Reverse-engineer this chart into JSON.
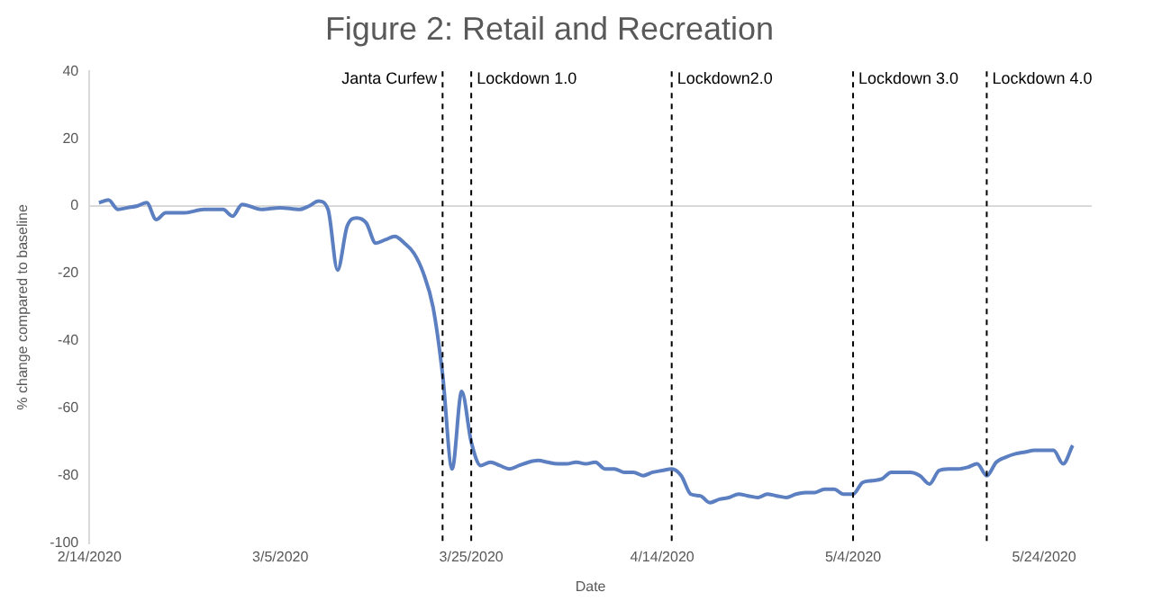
{
  "chart_data": {
    "type": "line",
    "title": "Figure 2: Retail and Recreation",
    "xlabel": "Date",
    "ylabel": "% change compared to baseline",
    "x": [
      "2020-02-15",
      "2020-02-16",
      "2020-02-17",
      "2020-02-18",
      "2020-02-19",
      "2020-02-20",
      "2020-02-21",
      "2020-02-22",
      "2020-02-24",
      "2020-02-26",
      "2020-02-28",
      "2020-02-29",
      "2020-03-01",
      "2020-03-03",
      "2020-03-05",
      "2020-03-07",
      "2020-03-08",
      "2020-03-09",
      "2020-03-10",
      "2020-03-11",
      "2020-03-12",
      "2020-03-13",
      "2020-03-14",
      "2020-03-15",
      "2020-03-16",
      "2020-03-17",
      "2020-03-18",
      "2020-03-19",
      "2020-03-20",
      "2020-03-21",
      "2020-03-22",
      "2020-03-23",
      "2020-03-24",
      "2020-03-25",
      "2020-03-26",
      "2020-03-27",
      "2020-03-28",
      "2020-03-29",
      "2020-03-30",
      "2020-03-31",
      "2020-04-01",
      "2020-04-02",
      "2020-04-03",
      "2020-04-04",
      "2020-04-05",
      "2020-04-06",
      "2020-04-07",
      "2020-04-08",
      "2020-04-09",
      "2020-04-10",
      "2020-04-11",
      "2020-04-12",
      "2020-04-13",
      "2020-04-14",
      "2020-04-15",
      "2020-04-16",
      "2020-04-17",
      "2020-04-18",
      "2020-04-19",
      "2020-04-20",
      "2020-04-21",
      "2020-04-22",
      "2020-04-23",
      "2020-04-24",
      "2020-04-25",
      "2020-04-26",
      "2020-04-27",
      "2020-04-28",
      "2020-04-29",
      "2020-04-30",
      "2020-05-01",
      "2020-05-02",
      "2020-05-03",
      "2020-05-04",
      "2020-05-05",
      "2020-05-06",
      "2020-05-07",
      "2020-05-08",
      "2020-05-09",
      "2020-05-10",
      "2020-05-11",
      "2020-05-12",
      "2020-05-13",
      "2020-05-14",
      "2020-05-15",
      "2020-05-16",
      "2020-05-17",
      "2020-05-18",
      "2020-05-19",
      "2020-05-20",
      "2020-05-21",
      "2020-05-22",
      "2020-05-23",
      "2020-05-24",
      "2020-05-25",
      "2020-05-26",
      "2020-05-27"
    ],
    "series": [
      {
        "color": "#5b7fc0",
        "values": [
          1,
          1.8,
          -1,
          -0.5,
          0,
          1,
          -4,
          -2,
          -2,
          -1,
          -1,
          -3,
          0.5,
          -1,
          -0.5,
          -1,
          0,
          1.5,
          -1,
          -19,
          -6,
          -3.5,
          -5,
          -11,
          -10,
          -9,
          -11,
          -14,
          -20,
          -30,
          -50,
          -78,
          -55,
          -70,
          -77,
          -76,
          -77,
          -78,
          -77,
          -76,
          -75.5,
          -76,
          -76.5,
          -76.5,
          -76,
          -76.5,
          -76,
          -78,
          -78,
          -79,
          -79,
          -80,
          -79,
          -78.5,
          -78,
          -80,
          -85.5,
          -86,
          -88,
          -87,
          -86.5,
          -85.5,
          -86,
          -86.5,
          -85.5,
          -86,
          -86.5,
          -85.5,
          -85,
          -85,
          -84,
          -84,
          -85.5,
          -85.5,
          -82,
          -81.5,
          -81,
          -79,
          -79,
          -79,
          -80,
          -82.5,
          -78.5,
          -78,
          -78,
          -77.5,
          -76.5,
          -80,
          -76,
          -74.5,
          -73.5,
          -73,
          -72.5,
          -72.5,
          -72.5,
          -76.5,
          -71
        ]
      }
    ],
    "xlim": [
      "2020-02-14",
      "2020-05-29"
    ],
    "xticks": [
      {
        "value": "2020-02-14",
        "label": "2/14/2020"
      },
      {
        "value": "2020-03-05",
        "label": "3/5/2020"
      },
      {
        "value": "2020-03-25",
        "label": "3/25/2020"
      },
      {
        "value": "2020-04-14",
        "label": "4/14/2020"
      },
      {
        "value": "2020-05-04",
        "label": "5/4/2020"
      },
      {
        "value": "2020-05-24",
        "label": "5/24/2020"
      }
    ],
    "ylim": [
      -100,
      40
    ],
    "yticks": [
      -100,
      -80,
      -60,
      -40,
      -20,
      0,
      20,
      40
    ],
    "ref_lines": [
      {
        "axis": "x",
        "value": "2020-03-22",
        "label": "Janta Curfew",
        "color": "#000000",
        "line_style": "dashed"
      },
      {
        "axis": "x",
        "value": "2020-03-25",
        "label": "Lockdown 1.0",
        "color": "#000000",
        "line_style": "dashed"
      },
      {
        "axis": "x",
        "value": "2020-04-15",
        "label": "Lockdown2.0",
        "color": "#000000",
        "line_style": "dashed"
      },
      {
        "axis": "x",
        "value": "2020-05-04",
        "label": "Lockdown 3.0",
        "color": "#000000",
        "line_style": "dashed"
      },
      {
        "axis": "x",
        "value": "2020-05-18",
        "label": "Lockdown 4.0",
        "color": "#000000",
        "line_style": "dashed"
      }
    ],
    "grid": false,
    "legend": false,
    "marker": "none",
    "line_style": "solid"
  }
}
